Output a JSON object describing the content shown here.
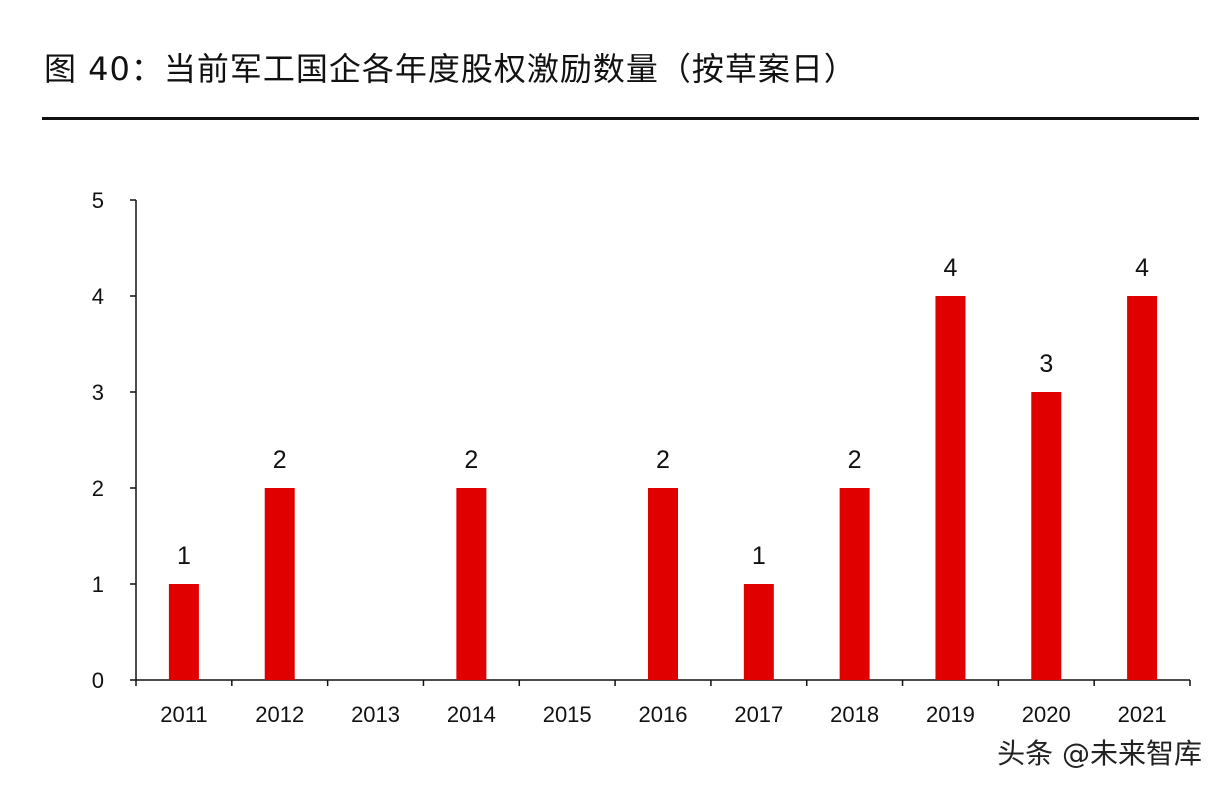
{
  "header": {
    "title": "图 40：当前军工国企各年度股权激励数量（按草案日）"
  },
  "watermark": "头条 @未来智库",
  "colors": {
    "bar": "#e00000",
    "axis": "#111111",
    "rule": "#111111"
  },
  "chart_data": {
    "type": "bar",
    "categories": [
      "2011",
      "2012",
      "2013",
      "2014",
      "2015",
      "2016",
      "2017",
      "2018",
      "2019",
      "2020",
      "2021"
    ],
    "values": [
      1,
      2,
      0,
      2,
      0,
      2,
      1,
      2,
      4,
      3,
      4
    ],
    "data_labels": [
      "1",
      "2",
      "",
      "2",
      "",
      "2",
      "1",
      "2",
      "4",
      "3",
      "4"
    ],
    "title": "",
    "xlabel": "",
    "ylabel": "",
    "ylim": [
      0,
      5
    ],
    "yticks": [
      "0",
      "1",
      "2",
      "3",
      "4",
      "5"
    ],
    "grid": false,
    "legend": "none"
  }
}
